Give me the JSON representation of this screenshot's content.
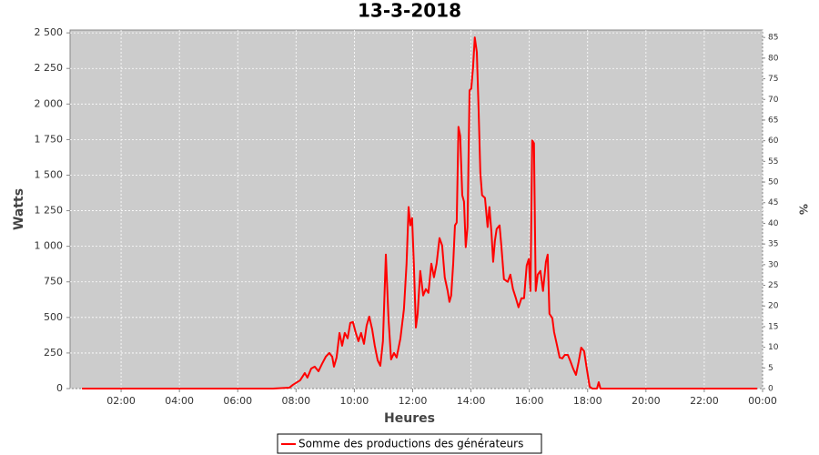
{
  "chart_data": {
    "type": "line",
    "title": "13-3-2018",
    "x_label": "Heures",
    "y_label": "Watts",
    "y2_label": "%",
    "xlim": [
      0.25,
      24
    ],
    "xticks": [
      {
        "value": 2,
        "label": "02:00"
      },
      {
        "value": 4,
        "label": "04:00"
      },
      {
        "value": 6,
        "label": "06:00"
      },
      {
        "value": 8,
        "label": "08:00"
      },
      {
        "value": 10,
        "label": "10:00"
      },
      {
        "value": 12,
        "label": "12:00"
      },
      {
        "value": 14,
        "label": "14:00"
      },
      {
        "value": 16,
        "label": "16:00"
      },
      {
        "value": 18,
        "label": "18:00"
      },
      {
        "value": 20,
        "label": "20:00"
      },
      {
        "value": 22,
        "label": "22:00"
      },
      {
        "value": 24,
        "label": "00:00"
      }
    ],
    "ylim": [
      0,
      2520
    ],
    "yticks": [
      0,
      250,
      500,
      750,
      {
        "value": 1000,
        "label": "1 000"
      },
      {
        "value": 1250,
        "label": "1 250"
      },
      {
        "value": 1500,
        "label": "1 500"
      },
      {
        "value": 1750,
        "label": "1 750"
      },
      {
        "value": 2000,
        "label": "2 000"
      },
      {
        "value": 2250,
        "label": "2 250"
      },
      {
        "value": 2500,
        "label": "2 500"
      }
    ],
    "y2lim": [
      0,
      86.8
    ],
    "y2ticks": [
      0,
      5,
      10,
      15,
      20,
      25,
      30,
      35,
      40,
      45,
      50,
      55,
      60,
      65,
      70,
      75,
      80,
      85
    ],
    "grid": true,
    "legend": "bottom",
    "x": [
      0.66,
      7.21,
      7.77,
      7.89,
      8.14,
      8.3,
      8.39,
      8.52,
      8.64,
      8.77,
      8.89,
      9.02,
      9.14,
      9.24,
      9.3,
      9.39,
      9.49,
      9.58,
      9.67,
      9.77,
      9.86,
      9.95,
      10.05,
      10.14,
      10.23,
      10.33,
      10.42,
      10.51,
      10.61,
      10.7,
      10.8,
      10.89,
      10.98,
      11.08,
      11.17,
      11.26,
      11.36,
      11.45,
      11.58,
      11.7,
      11.79,
      11.86,
      11.92,
      11.98,
      12.04,
      12.11,
      12.17,
      12.26,
      12.36,
      12.45,
      12.54,
      12.64,
      12.73,
      12.82,
      12.92,
      13.01,
      13.1,
      13.2,
      13.26,
      13.32,
      13.39,
      13.45,
      13.51,
      13.57,
      13.63,
      13.7,
      13.76,
      13.82,
      13.88,
      13.95,
      14.01,
      14.07,
      14.13,
      14.2,
      14.26,
      14.32,
      14.38,
      14.48,
      14.57,
      14.63,
      14.7,
      14.76,
      14.82,
      14.88,
      14.98,
      15.04,
      15.13,
      15.26,
      15.35,
      15.44,
      15.54,
      15.63,
      15.73,
      15.82,
      15.91,
      15.98,
      16.04,
      16.1,
      16.16,
      16.22,
      16.29,
      16.38,
      16.47,
      16.57,
      16.63,
      16.69,
      16.79,
      16.85,
      16.94,
      17.04,
      17.13,
      17.22,
      17.32,
      17.41,
      17.5,
      17.6,
      17.69,
      17.78,
      17.88,
      17.97,
      18.07,
      18.16,
      18.32,
      18.38,
      18.44,
      19.69,
      23.81
    ],
    "series": [
      {
        "name": "Somme des productions des  générateurs",
        "color": "#ff0000",
        "values": [
          0,
          0,
          6,
          26,
          58,
          109,
          77,
          141,
          154,
          122,
          173,
          224,
          250,
          224,
          154,
          218,
          391,
          301,
          391,
          353,
          462,
          468,
          391,
          333,
          391,
          314,
          442,
          506,
          417,
          301,
          199,
          160,
          333,
          942,
          494,
          205,
          250,
          218,
          353,
          558,
          878,
          1276,
          1147,
          1199,
          878,
          429,
          526,
          827,
          654,
          699,
          673,
          878,
          782,
          878,
          1058,
          1006,
          782,
          686,
          609,
          654,
          878,
          1147,
          1167,
          1840,
          1776,
          1359,
          1314,
          994,
          1135,
          2096,
          2109,
          2256,
          2468,
          2365,
          1968,
          1519,
          1359,
          1340,
          1135,
          1276,
          1103,
          891,
          1038,
          1122,
          1147,
          1006,
          769,
          750,
          801,
          699,
          635,
          571,
          635,
          635,
          865,
          910,
          686,
          1744,
          1724,
          686,
          801,
          827,
          686,
          891,
          942,
          526,
          494,
          397,
          314,
          218,
          212,
          237,
          237,
          192,
          141,
          96,
          186,
          288,
          263,
          141,
          13,
          0,
          0,
          45,
          0,
          0,
          0
        ]
      }
    ]
  }
}
